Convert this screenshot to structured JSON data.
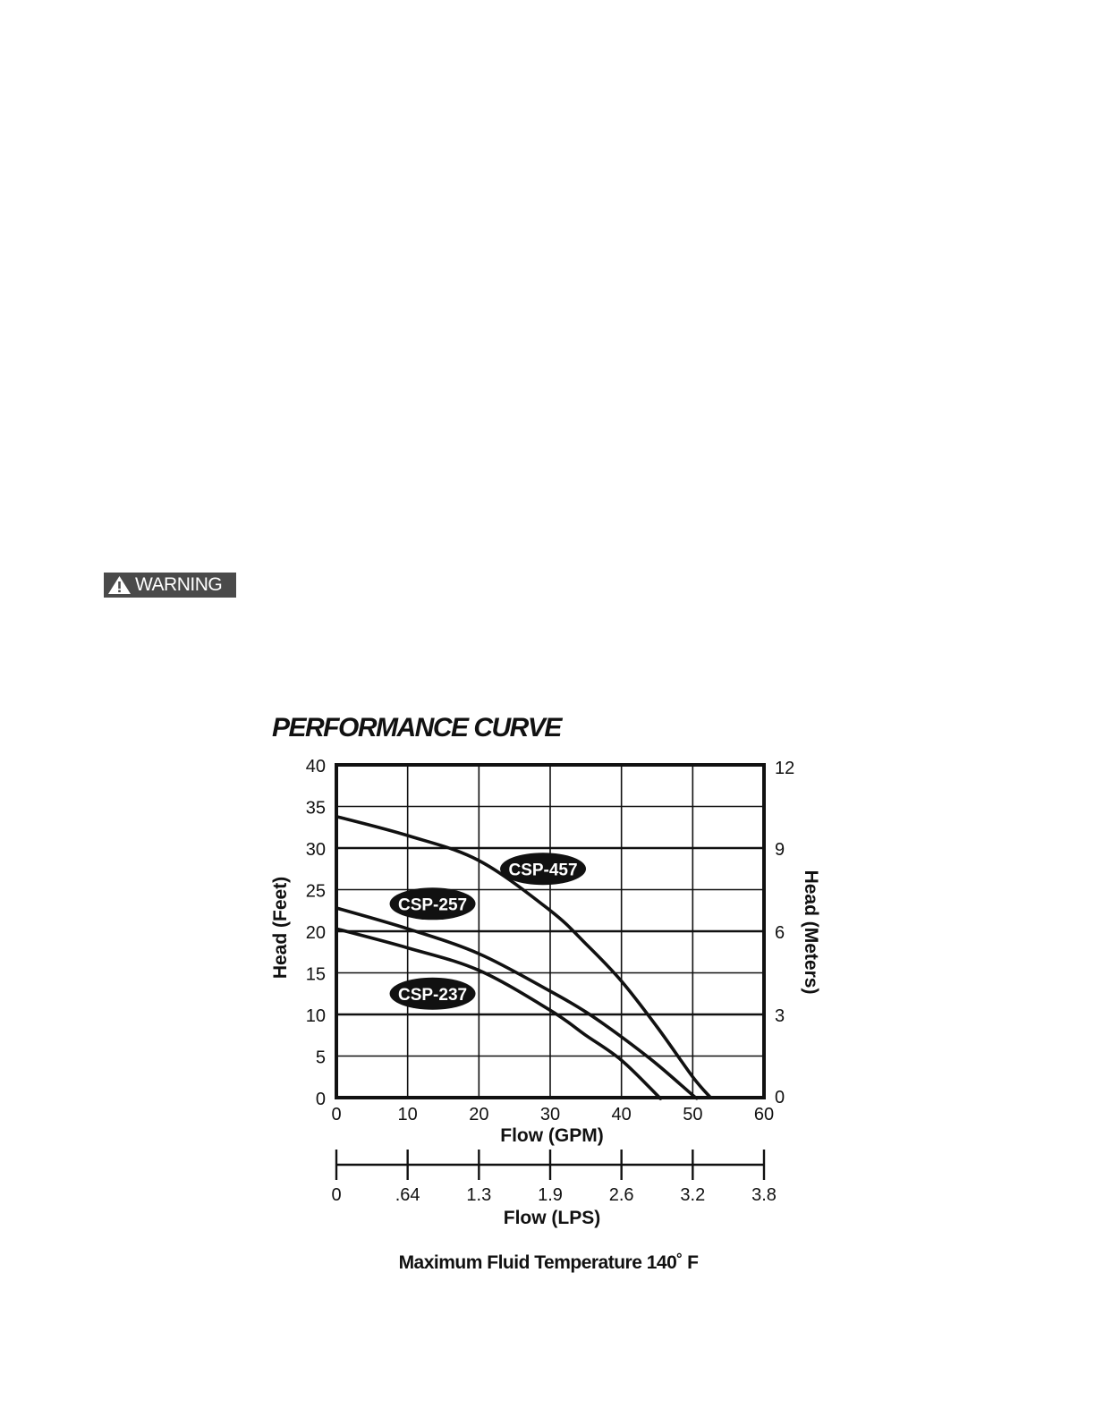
{
  "warning": {
    "label": "WARNING",
    "icon": "warning-triangle-icon",
    "background_color": "#4a4a4a"
  },
  "chart_data": {
    "type": "line",
    "title": "PERFORMANCE CURVE",
    "xlabel": "Flow (GPM)",
    "ylabel": "Head (Feet)",
    "y2label": "Head (Meters)",
    "x2label": "Flow (LPS)",
    "xlim": [
      0,
      60
    ],
    "ylim": [
      0,
      40
    ],
    "x_ticks": [
      "0",
      "10",
      "20",
      "30",
      "40",
      "50",
      "60"
    ],
    "y_ticks": [
      "0",
      "5",
      "10",
      "15",
      "20",
      "25",
      "30",
      "35",
      "40"
    ],
    "y2_ticks": [
      {
        "label": "0",
        "feet": 0
      },
      {
        "label": "3",
        "feet": 10
      },
      {
        "label": "6",
        "feet": 20
      },
      {
        "label": "9",
        "feet": 30
      },
      {
        "label": "12",
        "feet": 40
      }
    ],
    "x2_ticks": [
      {
        "label": "0",
        "gpm": 0
      },
      {
        "label": ".64",
        "gpm": 10
      },
      {
        "label": "1.3",
        "gpm": 20
      },
      {
        "label": "1.9",
        "gpm": 30
      },
      {
        "label": "2.6",
        "gpm": 40
      },
      {
        "label": "3.2",
        "gpm": 50
      },
      {
        "label": "3.8",
        "gpm": 60
      }
    ],
    "grid": true,
    "legend": "inline labels",
    "series": [
      {
        "name": "CSP-457",
        "label_at": [
          29,
          27.5
        ],
        "points": [
          [
            0,
            33.8
          ],
          [
            10,
            31.5
          ],
          [
            20,
            28.5
          ],
          [
            30,
            22.5
          ],
          [
            35,
            18.5
          ],
          [
            40,
            14
          ],
          [
            45,
            8.5
          ],
          [
            50,
            2.5
          ],
          [
            52.5,
            0
          ]
        ]
      },
      {
        "name": "CSP-257",
        "label_at": [
          13.5,
          23.3
        ],
        "points": [
          [
            0,
            22.8
          ],
          [
            10,
            20.3
          ],
          [
            20,
            17.3
          ],
          [
            30,
            12.8
          ],
          [
            35,
            10.3
          ],
          [
            40,
            7.3
          ],
          [
            45,
            4
          ],
          [
            50,
            0.3
          ],
          [
            50.5,
            0
          ]
        ]
      },
      {
        "name": "CSP-237",
        "label_at": [
          13.5,
          12.5
        ],
        "points": [
          [
            0,
            20.3
          ],
          [
            10,
            18
          ],
          [
            20,
            15.3
          ],
          [
            30,
            10.5
          ],
          [
            35,
            7.5
          ],
          [
            40,
            4.5
          ],
          [
            45,
            0.3
          ],
          [
            45.3,
            0
          ]
        ]
      }
    ],
    "footnote": "Maximum Fluid Temperature 140˚ F"
  }
}
